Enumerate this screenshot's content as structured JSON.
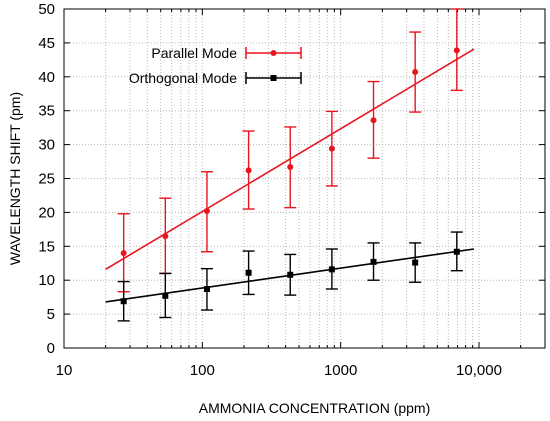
{
  "chart_data": {
    "type": "scatter",
    "title": "",
    "xlabel": "AMMONIA CONCENTRATION (ppm)",
    "ylabel": "WAVELENGTH SHIFT (pm)",
    "x_scale": "log",
    "xlim": [
      10,
      30000
    ],
    "ylim": [
      0,
      50
    ],
    "x_ticks": [
      10,
      100,
      1000,
      10000
    ],
    "x_tick_labels": [
      "10",
      "100",
      "1000",
      "10,000"
    ],
    "y_ticks": [
      0,
      5,
      10,
      15,
      20,
      25,
      30,
      35,
      40,
      45,
      50
    ],
    "y_tick_labels": [
      "0",
      "5",
      "10",
      "15",
      "20",
      "25",
      "30",
      "35",
      "40",
      "45",
      "50"
    ],
    "grid": true,
    "legend_position": "top-left",
    "series": [
      {
        "name": "Parallel Mode",
        "color": "#e8141e",
        "marker": "circle",
        "x": [
          27,
          54,
          108,
          216,
          432,
          864,
          1728,
          3456,
          6912
        ],
        "y": [
          14,
          16.5,
          20.2,
          26.2,
          26.7,
          29.4,
          33.6,
          40.7,
          43.9
        ],
        "err_low": [
          5.7,
          5.5,
          6.0,
          5.7,
          6.0,
          5.5,
          5.6,
          5.9,
          5.9
        ],
        "err_high": [
          5.8,
          5.6,
          5.8,
          5.8,
          5.9,
          5.5,
          5.7,
          5.9,
          6.1
        ],
        "fit": {
          "x": [
            20,
            9200
          ],
          "y": [
            11.6,
            44.1
          ]
        }
      },
      {
        "name": "Orthogonal Mode",
        "color": "#000000",
        "marker": "square",
        "x": [
          27,
          54,
          108,
          216,
          432,
          864,
          1728,
          3456,
          6912
        ],
        "y": [
          6.9,
          7.7,
          8.7,
          11.1,
          10.8,
          11.6,
          12.7,
          12.6,
          14.2
        ],
        "err_low": [
          2.9,
          3.2,
          3.1,
          3.2,
          3.0,
          2.9,
          2.7,
          2.9,
          2.8
        ],
        "err_high": [
          2.9,
          3.3,
          3.0,
          3.2,
          3.0,
          3.0,
          2.8,
          2.9,
          2.9
        ],
        "fit": {
          "x": [
            20,
            9200
          ],
          "y": [
            6.8,
            14.6
          ]
        }
      }
    ]
  }
}
